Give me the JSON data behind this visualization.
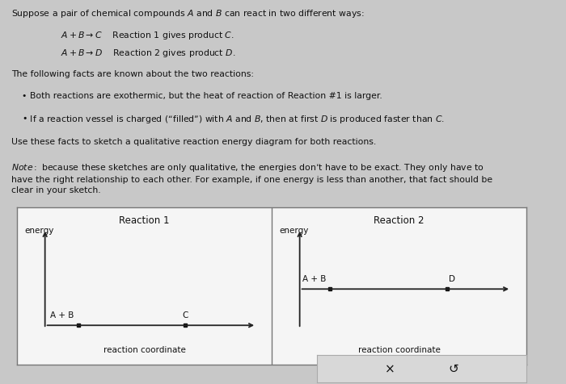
{
  "bg_color": "#c8c8c8",
  "box_bg": "#f0f0f0",
  "panel_bg": "#f5f5f5",
  "text_color": "#111111",
  "line_color": "#222222",
  "font_size_text": 7.8,
  "font_size_small": 7.2,
  "font_size_label": 7.5,
  "font_size_title": 8.5,
  "font_size_note": 7.5,
  "rxn1_title": "Reaction 1",
  "rxn1_ylabel": "energy",
  "rxn1_xlabel": "reaction coordinate",
  "rxn1_ab_label": "A + B",
  "rxn1_prod_label": "C",
  "rxn2_title": "Reaction 2",
  "rxn2_ylabel": "energy",
  "rxn2_xlabel": "reaction coordinate",
  "rxn2_ab_label": "A + B",
  "rxn2_prod_label": "D",
  "button_bg": "#d8d8d8",
  "button_border": "#aaaaaa"
}
